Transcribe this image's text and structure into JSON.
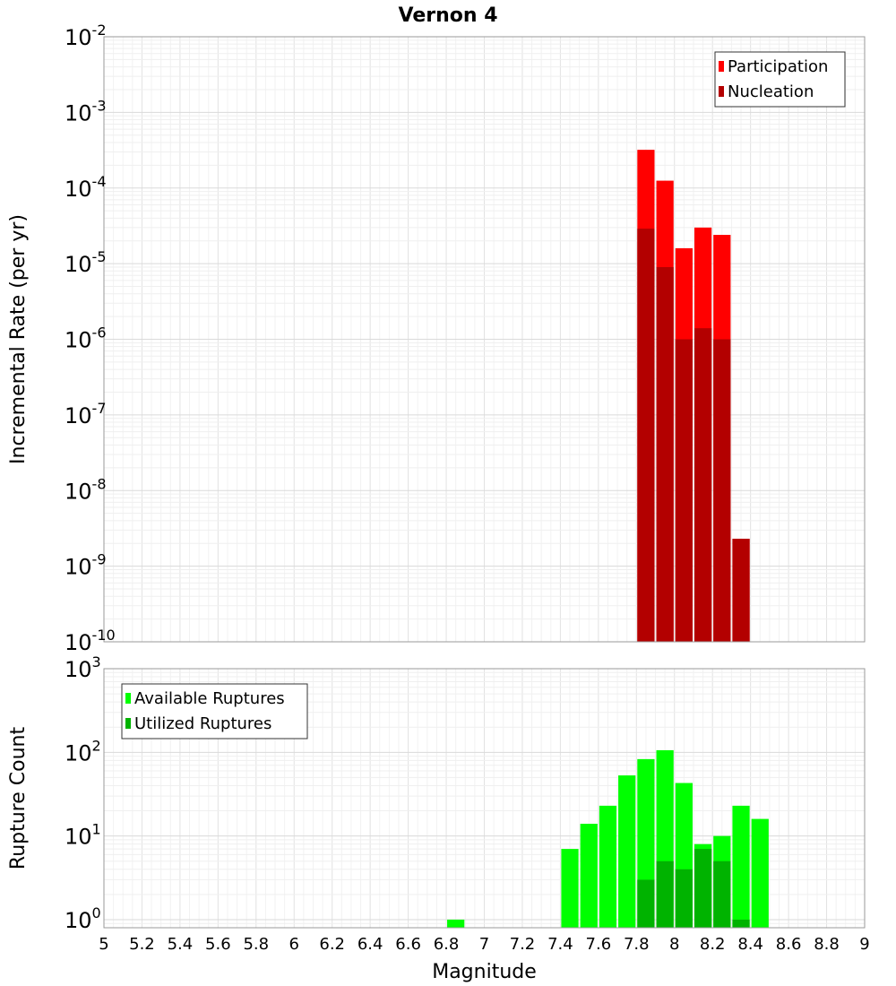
{
  "chart_data": [
    {
      "type": "bar",
      "title": "Vernon 4",
      "xlabel": "",
      "ylabel": "Incremental Rate (per yr)",
      "yscale": "log",
      "xlim": [
        5,
        9
      ],
      "ylim": [
        1e-10,
        0.01
      ],
      "y_tick_labels": [
        {
          "base": "10",
          "exp": "-10",
          "value": 1e-10
        },
        {
          "base": "10",
          "exp": "-9",
          "value": 1e-09
        },
        {
          "base": "10",
          "exp": "-8",
          "value": 1e-08
        },
        {
          "base": "10",
          "exp": "-7",
          "value": 1e-07
        },
        {
          "base": "10",
          "exp": "-6",
          "value": 1e-06
        },
        {
          "base": "10",
          "exp": "-5",
          "value": 1e-05
        },
        {
          "base": "10",
          "exp": "-4",
          "value": 0.0001
        },
        {
          "base": "10",
          "exp": "-3",
          "value": 0.001
        },
        {
          "base": "10",
          "exp": "-2",
          "value": 0.01
        }
      ],
      "legend_position": "top-right",
      "grid": true,
      "bar_width": 0.1,
      "series": [
        {
          "name": "Participation",
          "color": "#ff0000",
          "points": [
            {
              "x": 7.85,
              "y": 0.00032
            },
            {
              "x": 7.95,
              "y": 0.000125
            },
            {
              "x": 8.05,
              "y": 1.6e-05
            },
            {
              "x": 8.15,
              "y": 3e-05
            },
            {
              "x": 8.25,
              "y": 2.4e-05
            },
            {
              "x": 8.35,
              "y": 2.3e-09
            }
          ]
        },
        {
          "name": "Nucleation",
          "color": "#b30000",
          "points": [
            {
              "x": 7.85,
              "y": 2.9e-05
            },
            {
              "x": 7.95,
              "y": 9e-06
            },
            {
              "x": 8.05,
              "y": 1e-06
            },
            {
              "x": 8.15,
              "y": 1.4e-06
            },
            {
              "x": 8.25,
              "y": 1e-06
            },
            {
              "x": 8.35,
              "y": 2.3e-09
            }
          ]
        }
      ]
    },
    {
      "type": "bar",
      "title": "",
      "xlabel": "Magnitude",
      "ylabel": "Rupture Count",
      "yscale": "log",
      "xlim": [
        5,
        9
      ],
      "ylim": [
        0.8,
        1000
      ],
      "y_tick_labels": [
        {
          "base": "10",
          "exp": "0",
          "value": 1
        },
        {
          "base": "10",
          "exp": "1",
          "value": 10
        },
        {
          "base": "10",
          "exp": "2",
          "value": 100
        },
        {
          "base": "10",
          "exp": "3",
          "value": 1000
        }
      ],
      "x_tick_labels": [
        "5",
        "5.2",
        "5.4",
        "5.6",
        "5.8",
        "6",
        "6.2",
        "6.4",
        "6.6",
        "6.8",
        "7",
        "7.2",
        "7.4",
        "7.6",
        "7.8",
        "8",
        "8.2",
        "8.4",
        "8.6",
        "8.8",
        "9"
      ],
      "legend_position": "top-left",
      "grid": true,
      "bar_width": 0.1,
      "series": [
        {
          "name": "Available Ruptures",
          "color": "#00ff00",
          "points": [
            {
              "x": 6.85,
              "y": 1
            },
            {
              "x": 7.45,
              "y": 7
            },
            {
              "x": 7.55,
              "y": 14
            },
            {
              "x": 7.65,
              "y": 23
            },
            {
              "x": 7.75,
              "y": 53
            },
            {
              "x": 7.85,
              "y": 83
            },
            {
              "x": 7.95,
              "y": 106
            },
            {
              "x": 8.05,
              "y": 43
            },
            {
              "x": 8.15,
              "y": 8
            },
            {
              "x": 8.25,
              "y": 10
            },
            {
              "x": 8.35,
              "y": 23
            },
            {
              "x": 8.45,
              "y": 16
            }
          ]
        },
        {
          "name": "Utilized Ruptures",
          "color": "#00b300",
          "points": [
            {
              "x": 7.85,
              "y": 3
            },
            {
              "x": 7.95,
              "y": 5
            },
            {
              "x": 8.05,
              "y": 4
            },
            {
              "x": 8.15,
              "y": 7
            },
            {
              "x": 8.25,
              "y": 5
            },
            {
              "x": 8.35,
              "y": 1
            }
          ]
        }
      ]
    }
  ]
}
